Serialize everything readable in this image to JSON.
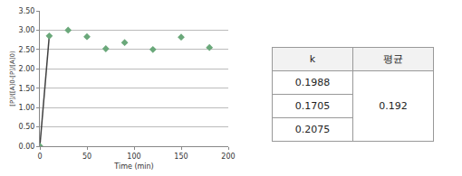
{
  "chart_data": {
    "type": "scatter",
    "x_label": "Time (min)",
    "y_label": "[P]/([A]0-[P]/[A]0)",
    "series": [
      {
        "type": "line",
        "x": [
          0,
          10
        ],
        "values": [
          0,
          2.85
        ],
        "color": "#404040",
        "line_style": "solid"
      },
      {
        "type": "scatter",
        "x": [
          0,
          10,
          30,
          50,
          70,
          90,
          120,
          150,
          180
        ],
        "values": [
          0,
          2.85,
          3.0,
          2.83,
          2.52,
          2.68,
          2.5,
          2.82,
          2.55
        ],
        "color": "#6aa87a",
        "marker": "diamond"
      }
    ],
    "xlim": [
      0,
      200
    ],
    "xticks": [
      0,
      50,
      100,
      150,
      200
    ],
    "ylim": [
      0,
      3.5
    ],
    "yticks": [
      {
        "value": 0,
        "label": "0.00"
      },
      {
        "value": 0.5,
        "label": "0.50"
      },
      {
        "value": 1,
        "label": "1.00"
      },
      {
        "value": 1.5,
        "label": "1.50"
      },
      {
        "value": 2,
        "label": "2.00"
      },
      {
        "value": 2.5,
        "label": "2.50"
      },
      {
        "value": 3,
        "label": "3.00"
      },
      {
        "value": 3.5,
        "label": "3.50"
      }
    ],
    "grid": true
  },
  "table": {
    "header": [
      "k",
      "평균"
    ],
    "k": [
      "0.1988",
      "0.1705",
      "0.2075"
    ],
    "average": "0.192"
  }
}
